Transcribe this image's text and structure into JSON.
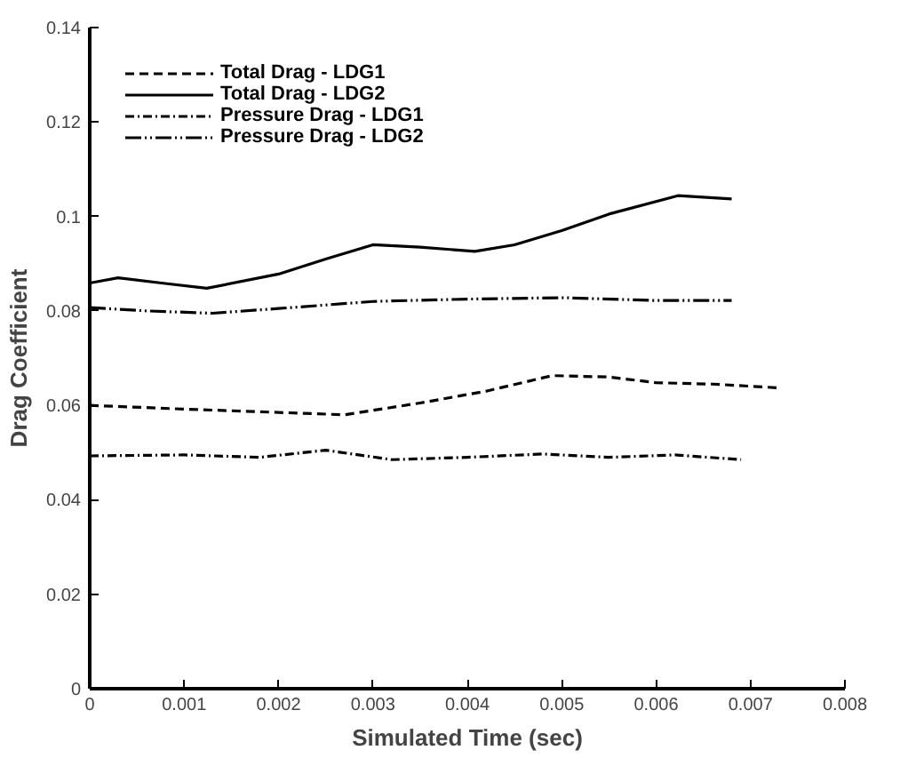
{
  "chart_data": {
    "type": "line",
    "xlabel": "Simulated Time (sec)",
    "ylabel": "Drag Coefficient",
    "xlim": [
      0,
      0.008
    ],
    "xticks": [
      0,
      0.001,
      0.002,
      0.003,
      0.004,
      0.005,
      0.006,
      0.007,
      0.008
    ],
    "ylim": [
      0,
      0.14
    ],
    "yticks": [
      0,
      0.02,
      0.04,
      0.06,
      0.08,
      0.1,
      0.12,
      0.14
    ],
    "grid": false,
    "legend": "top left",
    "marker": "none",
    "series": [
      {
        "name": "Total Drag - LDG1",
        "color": "#000000",
        "line_style": "dashed",
        "x": [
          0,
          0.001,
          0.002,
          0.0027,
          0.0035,
          0.0042,
          0.0049,
          0.0055,
          0.006,
          0.0066,
          0.0073
        ],
        "values": [
          0.06,
          0.0592,
          0.0585,
          0.058,
          0.0605,
          0.063,
          0.0663,
          0.066,
          0.0648,
          0.0645,
          0.0637
        ]
      },
      {
        "name": "Total Drag - LDG2",
        "color": "#000000",
        "line_style": "solid",
        "x": [
          0,
          0.0003,
          0.0008,
          0.00124,
          0.002,
          0.0025,
          0.003,
          0.0035,
          0.00408,
          0.0045,
          0.005,
          0.0055,
          0.00623,
          0.0068
        ],
        "values": [
          0.0859,
          0.087,
          0.0858,
          0.0848,
          0.0878,
          0.091,
          0.094,
          0.0935,
          0.0926,
          0.094,
          0.097,
          0.1005,
          0.1044,
          0.1037
        ]
      },
      {
        "name": "Pressure Drag - LDG1",
        "color": "#000000",
        "line_style": "dashdot",
        "x": [
          0,
          0.001,
          0.0018,
          0.0025,
          0.0032,
          0.004,
          0.0048,
          0.0055,
          0.0062,
          0.0069
        ],
        "values": [
          0.0493,
          0.0495,
          0.049,
          0.0505,
          0.0485,
          0.049,
          0.0497,
          0.049,
          0.0495,
          0.0485
        ]
      },
      {
        "name": "Pressure Drag - LDG2",
        "color": "#000000",
        "line_style": "longdashdot",
        "x": [
          0,
          0.0006,
          0.0013,
          0.002,
          0.003,
          0.004,
          0.005,
          0.006,
          0.0068
        ],
        "values": [
          0.0807,
          0.08,
          0.0795,
          0.0805,
          0.082,
          0.0825,
          0.0828,
          0.0822,
          0.0822
        ]
      }
    ]
  }
}
